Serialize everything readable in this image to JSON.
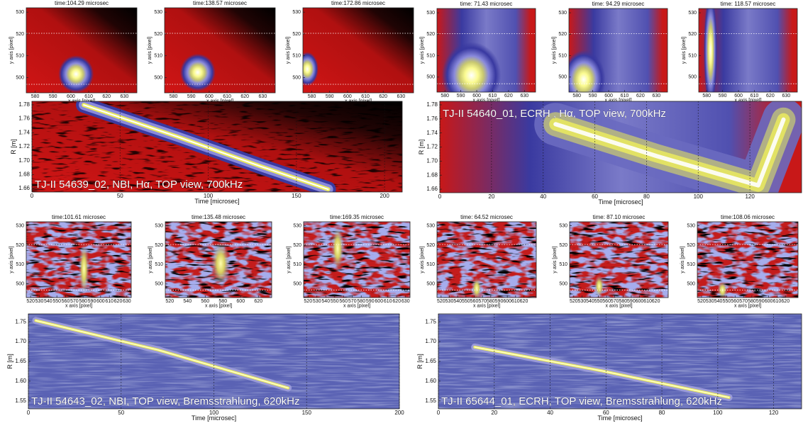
{
  "panels": [
    {
      "frames": [
        {
          "title": "time:104.29 microsec",
          "xlabel": "x axis [pixel]",
          "ylabel": "y axis [pixel]",
          "xlim": [
            575,
            637
          ],
          "xticks": [
            580,
            590,
            600,
            610,
            620,
            630
          ],
          "ylim": [
            493,
            532
          ],
          "yticks": [
            500,
            510,
            520,
            530
          ]
        },
        {
          "title": "time:138.57 microsec",
          "xlabel": "x axis [pixel]",
          "ylabel": "y axis [pixel]",
          "xlim": [
            575,
            637
          ],
          "xticks": [
            580,
            590,
            600,
            610,
            620,
            630
          ],
          "ylim": [
            493,
            532
          ],
          "yticks": [
            500,
            510,
            520,
            530
          ]
        },
        {
          "title": "time:172.86 microsec",
          "xlabel": "x axis [pixel]",
          "ylabel": "y axis [pixel]",
          "xlim": [
            575,
            637
          ],
          "xticks": [
            580,
            590,
            600,
            610,
            620,
            630
          ],
          "ylim": [
            493,
            532
          ],
          "yticks": [
            500,
            510,
            520,
            530
          ]
        }
      ],
      "main": {
        "caption": "TJ-II 54639_02, NBI, Hα, TOP view, 700kHz",
        "xlabel": "Time [microsec]",
        "ylabel": "R [m]",
        "xlim": [
          0,
          210
        ],
        "xticks": [
          0,
          50,
          100,
          150,
          200
        ],
        "ylim": [
          1.655,
          1.785
        ],
        "yticks": [
          1.66,
          1.68,
          {
            "value": 1.7,
            "label": "1.70"
          },
          1.72,
          1.74,
          1.76,
          1.78
        ]
      }
    },
    {
      "frames": [
        {
          "title": "time: 71.43 microsec",
          "xlabel": "x axis [pixel]",
          "ylabel": "y axis [pixel]",
          "xlim": [
            575,
            637
          ],
          "xticks": [
            580,
            590,
            600,
            610,
            620,
            630
          ],
          "ylim": [
            493,
            532
          ],
          "yticks": [
            500,
            510,
            520,
            530
          ]
        },
        {
          "title": "time: 94.29 microsec",
          "xlabel": "x axis [pixel]",
          "ylabel": "y axis [pixel]",
          "xlim": [
            575,
            637
          ],
          "xticks": [
            580,
            590,
            600,
            610,
            620,
            630
          ],
          "ylim": [
            493,
            532
          ],
          "yticks": [
            500,
            510,
            520,
            530
          ]
        },
        {
          "title": "time: 118.57 microsec",
          "xlabel": "x axis [pixel]",
          "ylabel": "y axis [pixel]",
          "xlim": [
            575,
            637
          ],
          "xticks": [
            580,
            590,
            600,
            610,
            620,
            630
          ],
          "ylim": [
            493,
            532
          ],
          "yticks": [
            500,
            510,
            520,
            530
          ]
        }
      ],
      "main": {
        "caption": "TJ-II 54640_01, ECRH , Hα, TOP view, 700kHz",
        "xlabel": "Time [microsec]",
        "ylabel": "R [m]",
        "xlim": [
          0,
          140
        ],
        "xticks": [
          0,
          20,
          40,
          60,
          80,
          100,
          120
        ],
        "ylim": [
          1.655,
          1.785
        ],
        "yticks": [
          1.66,
          1.68,
          {
            "value": 1.7,
            "label": "1.70"
          },
          1.72,
          1.74,
          1.76,
          1.78
        ]
      }
    },
    {
      "frames": [
        {
          "title": "time:101.61 microsec",
          "xlabel": "x axis [pixel]",
          "ylabel": "y axis [pixel]",
          "xlim": [
            515,
            635
          ],
          "xticks": [
            520,
            530,
            540,
            550,
            560,
            570,
            580,
            590,
            600,
            610,
            620,
            630
          ],
          "ylim": [
            493,
            532
          ],
          "yticks": [
            500,
            510,
            520,
            530
          ]
        },
        {
          "title": "time:135.48 microsec",
          "xlabel": "x axis [pixel]",
          "ylabel": "y axis [pixel]",
          "xlim": [
            515,
            635
          ],
          "xticks": [
            520,
            540,
            560,
            580,
            600,
            620
          ],
          "ylim": [
            493,
            532
          ],
          "yticks": [
            500,
            510,
            520,
            530
          ]
        },
        {
          "title": "time:169.35 microsec",
          "xlabel": "x axis [pixel]",
          "ylabel": "y axis [pixel]",
          "xlim": [
            515,
            635
          ],
          "xticks": [
            520,
            530,
            540,
            550,
            560,
            570,
            580,
            590,
            600,
            610,
            620,
            630
          ],
          "ylim": [
            493,
            532
          ],
          "yticks": [
            500,
            510,
            520,
            530
          ]
        }
      ],
      "main": {
        "caption": "TJ-II 54643_02, NBI, TOP view, Bremsstrahlung, 620kHz",
        "xlabel": "Time [microsec]",
        "ylabel": "R [m]",
        "xlim": [
          0,
          200
        ],
        "xticks": [
          0,
          50,
          100,
          150,
          200
        ],
        "ylim": [
          1.53,
          1.77
        ],
        "yticks": [
          1.55,
          {
            "value": 1.6,
            "label": "1.60"
          },
          1.65,
          {
            "value": 1.7,
            "label": "1.70"
          },
          1.75
        ]
      }
    },
    {
      "frames": [
        {
          "title": "time: 64.52 microsec",
          "xlabel": "x axis [pixel]",
          "ylabel": "y axis [pixel]",
          "xlim": [
            515,
            635
          ],
          "xticks": [
            520,
            530,
            540,
            550,
            560,
            570,
            580,
            590,
            600,
            610,
            620
          ],
          "ylim": [
            493,
            532
          ],
          "yticks": [
            500,
            510,
            520,
            530
          ]
        },
        {
          "title": "time: 87.10 microsec",
          "xlabel": "x axis [pixel]",
          "ylabel": "y axis [pixel]",
          "xlim": [
            515,
            635
          ],
          "xticks": [
            520,
            530,
            540,
            550,
            560,
            570,
            580,
            590,
            600,
            610,
            620
          ],
          "ylim": [
            493,
            532
          ],
          "yticks": [
            500,
            510,
            520,
            530
          ]
        },
        {
          "title": "time:108.06 microsec",
          "xlabel": "x axis [pixel]",
          "ylabel": "y axis [pixel]",
          "xlim": [
            515,
            635
          ],
          "xticks": [
            520,
            530,
            540,
            550,
            560,
            570,
            580,
            590,
            600,
            610,
            620
          ],
          "ylim": [
            493,
            532
          ],
          "yticks": [
            500,
            510,
            520,
            530
          ]
        }
      ],
      "main": {
        "caption": "TJ-II 65644_01, ECRH, TOP view, Bremsstrahlung, 620kHz",
        "xlabel": "Time [microsec]",
        "ylabel": "R [m]",
        "xlim": [
          0,
          130
        ],
        "xticks": [
          0,
          20,
          40,
          60,
          80,
          100,
          120
        ],
        "ylim": [
          1.53,
          1.77
        ],
        "yticks": [
          1.55,
          {
            "value": 1.6,
            "label": "1.60"
          },
          1.65,
          {
            "value": 1.7,
            "label": "1.70"
          },
          1.75
        ]
      }
    }
  ]
}
